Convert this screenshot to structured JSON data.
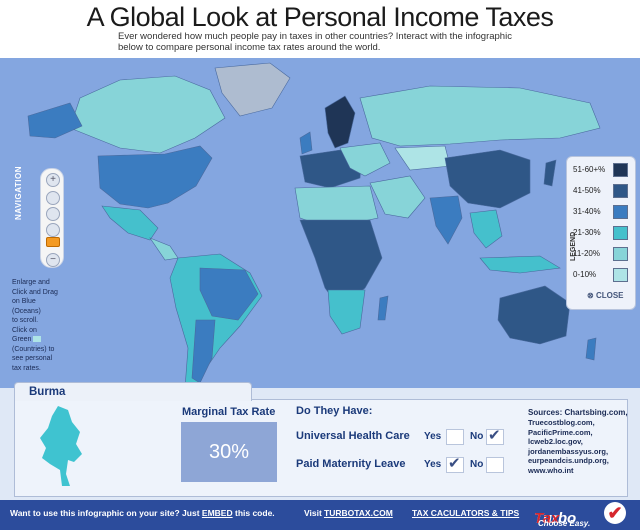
{
  "header": {
    "title": "A Global Look at Personal Income Taxes",
    "subtitle": "Ever wondered how much people pay in taxes in other countries? Interact with the infographic below to compare personal income tax rates around the world."
  },
  "navigation": {
    "label": "NAVIGATION",
    "help_lines": [
      "Enlarge and",
      "Click and Drag",
      "on Blue",
      "(Oceans)",
      "to scroll.",
      "Click on",
      "Green",
      "(Countries) to",
      "see personal",
      "tax rates."
    ]
  },
  "legend": {
    "label": "LEGEND",
    "close_label": "CLOSE",
    "items": [
      {
        "range": "51-60+%",
        "color": "#1f3556"
      },
      {
        "range": "41-50%",
        "color": "#2f5787"
      },
      {
        "range": "31-40%",
        "color": "#3b7cc0"
      },
      {
        "range": "21-30%",
        "color": "#45c0cc"
      },
      {
        "range": "11-20%",
        "color": "#87d4d8"
      },
      {
        "range": "0-10%",
        "color": "#aee4e6"
      }
    ]
  },
  "colors": {
    "ocean": "#84a6e0",
    "land_default": "#87d4d8",
    "accent": "#2c4c9c"
  },
  "detail": {
    "country": "Burma",
    "rate_label": "Marginal Tax Rate",
    "rate_value": "30%",
    "have_title": "Do They Have:",
    "universal_health_care": "Universal Health Care",
    "paid_maternity_leave": "Paid Maternity Leave",
    "yes": "Yes",
    "no": "No",
    "sources_title": "Sources: Chartsbing.com,",
    "sources": [
      "Truecostblog.com,",
      "PacificPrime.com,",
      "lcweb2.loc.gov,",
      "jordanembassyus.org,",
      "eurpeandcis.undp.org,",
      "www.who.int"
    ]
  },
  "footer": {
    "embed_prefix": "Want to use this infographic on your site? Just",
    "embed_link": "EMBED",
    "embed_suffix": "this code.",
    "visit_prefix": "Visit",
    "visit_link": "TURBOTAX.COM",
    "tips_link": "TAX CACULATORS & TIPS",
    "brand_turbo": "Turbo",
    "brand_tax": "Tax",
    "brand_tagline": "Choose Easy."
  }
}
